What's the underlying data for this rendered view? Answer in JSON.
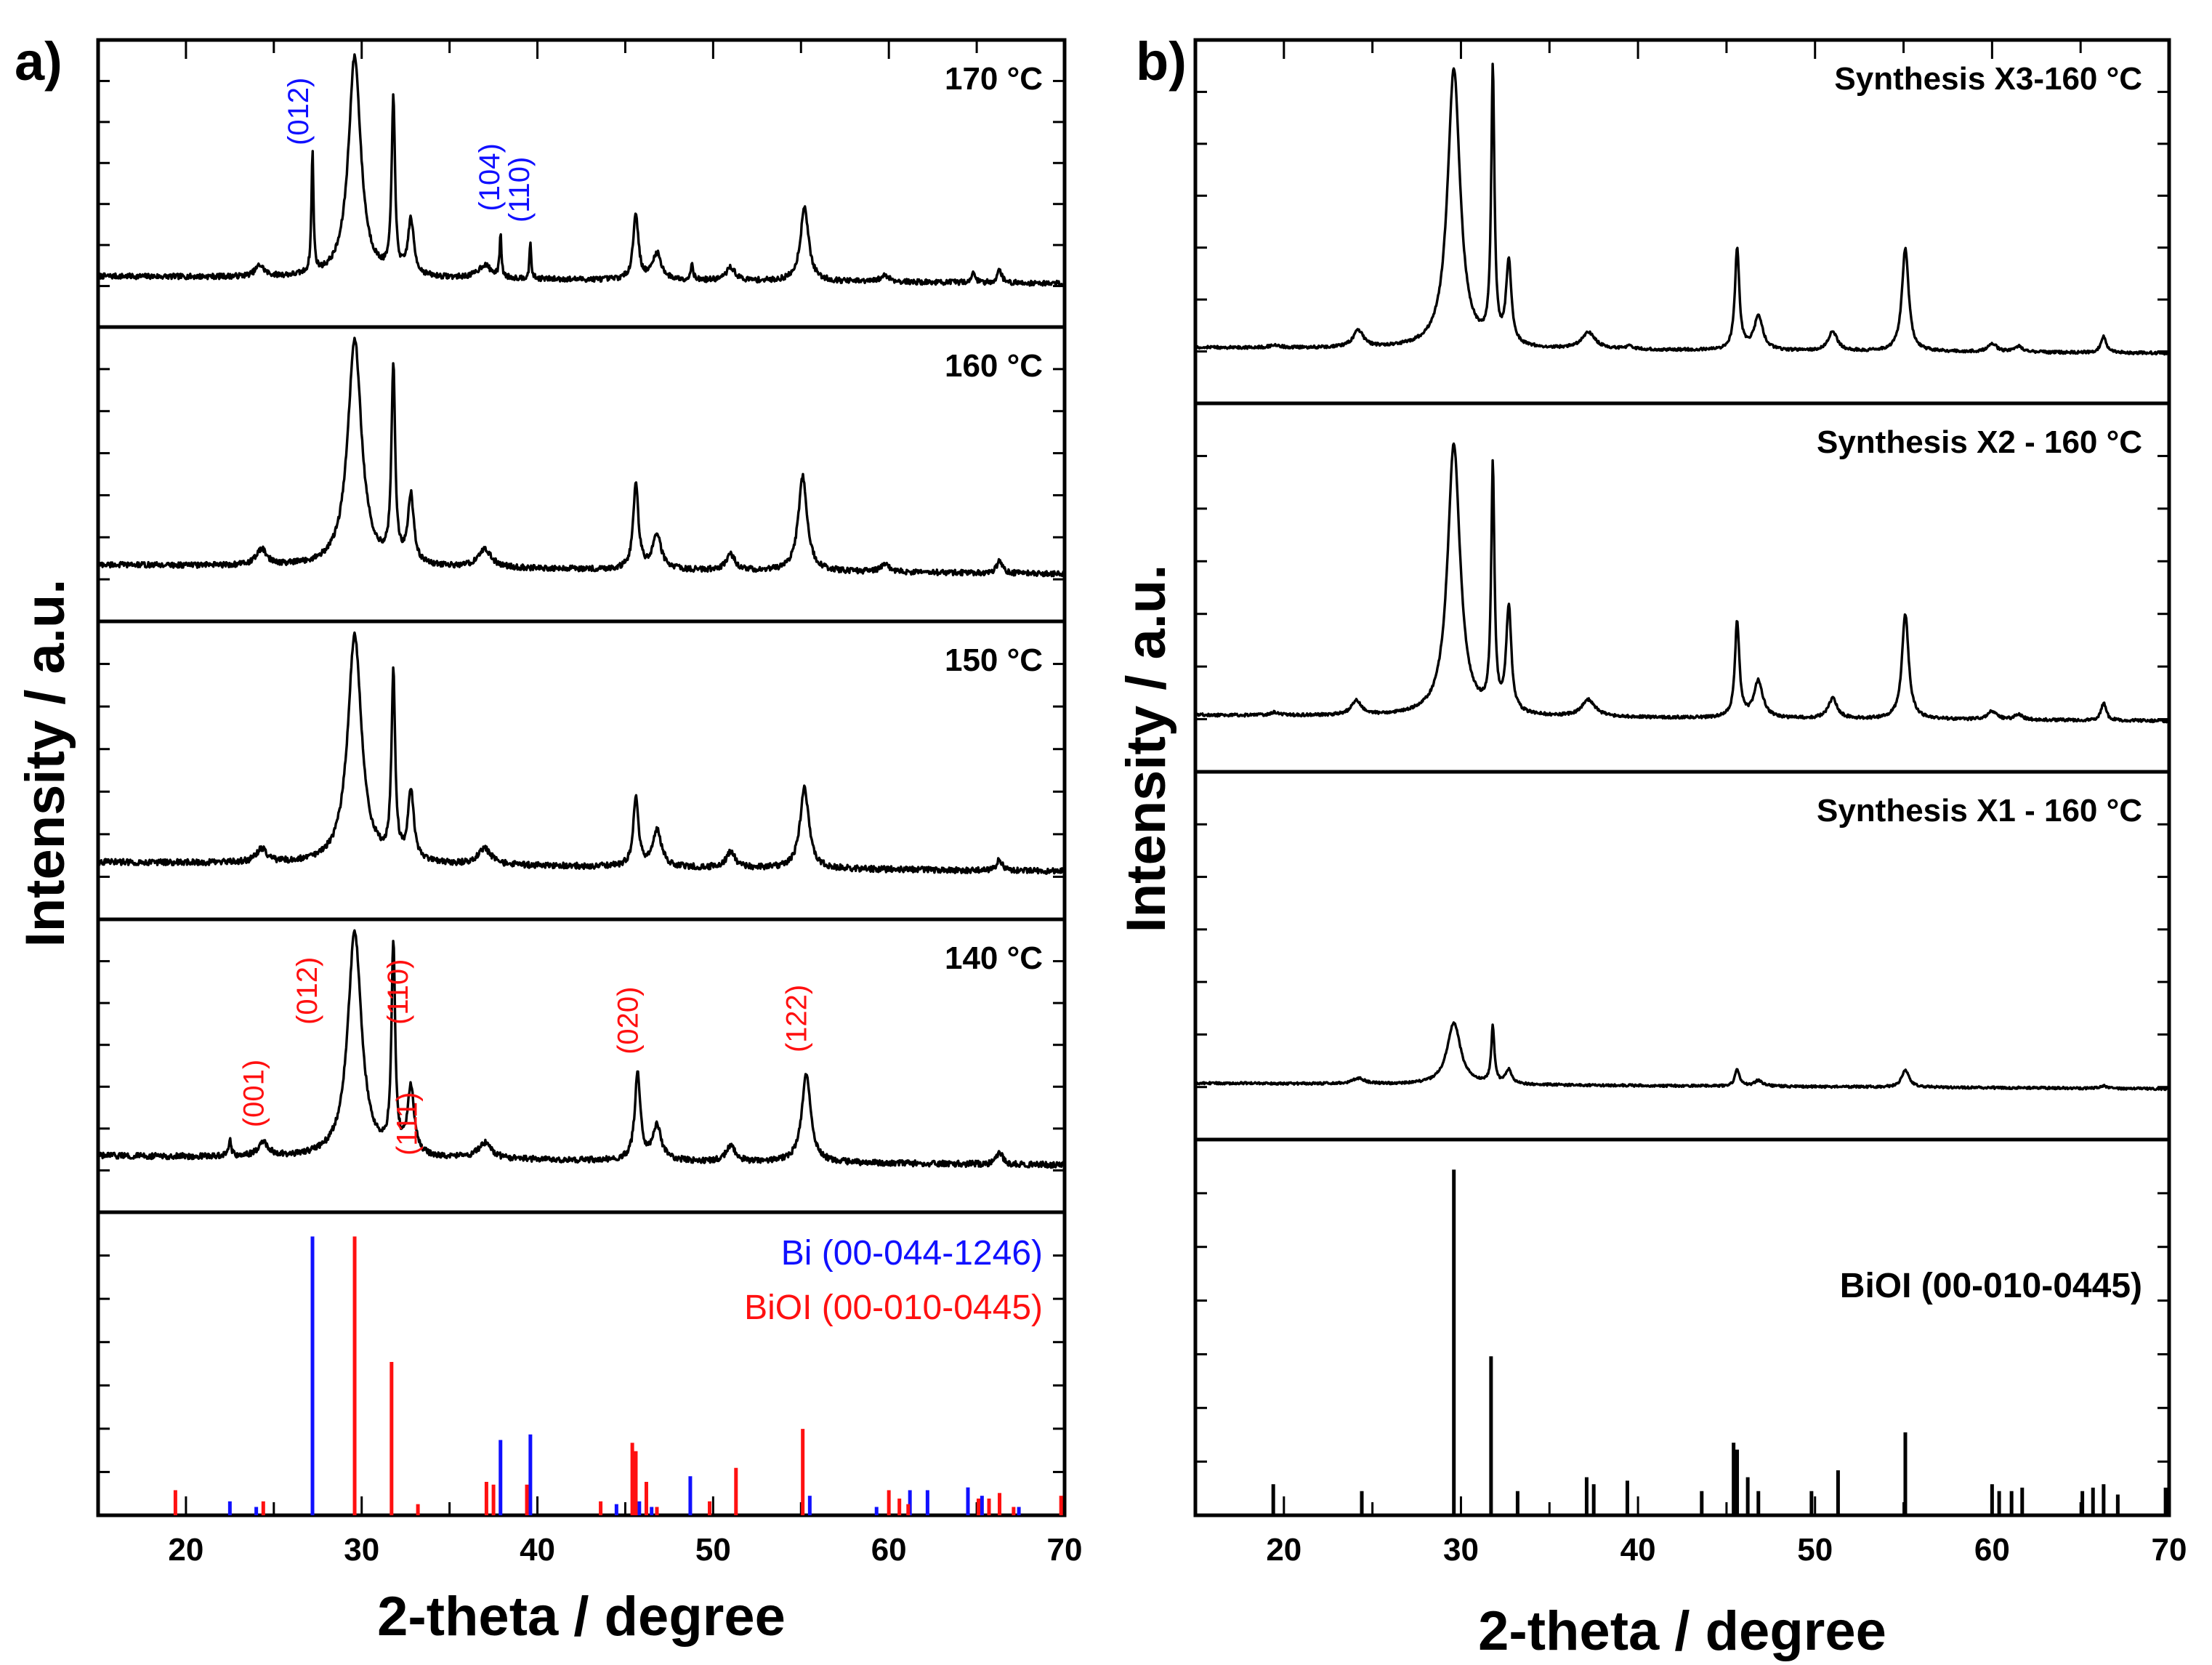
{
  "figure": {
    "panel_a_label": "a)",
    "panel_b_label": "b)",
    "colors": {
      "bi": "#1010ff",
      "bioi": "#ff1010",
      "black": "#000000"
    }
  },
  "chart_data": [
    {
      "type": "line",
      "panel": "a)",
      "xlabel": "2-theta / degree",
      "ylabel": "Intensity / a.u.",
      "xlim": [
        15,
        70
      ],
      "xticks": [
        20,
        30,
        40,
        50,
        60,
        70
      ],
      "grid": false,
      "stack": [
        {
          "label": "170 °C",
          "baseline": 0.08,
          "noise": 0.012,
          "peaks": [
            [
              24.2,
              0.05,
              0.6
            ],
            [
              27.2,
              0.55,
              0.14
            ],
            [
              29.6,
              1.0,
              0.85
            ],
            [
              31.8,
              0.8,
              0.22
            ],
            [
              32.8,
              0.25,
              0.4
            ],
            [
              37.0,
              0.06,
              0.9
            ],
            [
              37.9,
              0.2,
              0.12
            ],
            [
              39.6,
              0.16,
              0.12
            ],
            [
              45.6,
              0.3,
              0.35
            ],
            [
              46.8,
              0.12,
              0.6
            ],
            [
              48.8,
              0.08,
              0.15
            ],
            [
              51.0,
              0.06,
              0.6
            ],
            [
              55.2,
              0.34,
              0.55
            ],
            [
              59.8,
              0.03,
              0.6
            ],
            [
              64.8,
              0.04,
              0.3
            ],
            [
              66.3,
              0.06,
              0.3
            ]
          ],
          "annotations": [
            {
              "text": "(012)",
              "x": 27.2,
              "color": "#1010ff"
            },
            {
              "text": "(104)",
              "x": 37.9,
              "color": "#1010ff"
            },
            {
              "text": "(110)",
              "x": 39.6,
              "color": "#1010ff"
            }
          ]
        },
        {
          "label": "160 °C",
          "baseline": 0.1,
          "noise": 0.012,
          "peaks": [
            [
              24.3,
              0.07,
              0.7
            ],
            [
              29.6,
              1.0,
              0.95
            ],
            [
              31.8,
              0.85,
              0.25
            ],
            [
              32.8,
              0.3,
              0.4
            ],
            [
              37.0,
              0.08,
              0.9
            ],
            [
              45.6,
              0.38,
              0.35
            ],
            [
              46.8,
              0.15,
              0.6
            ],
            [
              51.0,
              0.07,
              0.6
            ],
            [
              55.1,
              0.42,
              0.6
            ],
            [
              59.8,
              0.03,
              0.6
            ],
            [
              66.3,
              0.06,
              0.35
            ]
          ],
          "annotations": []
        },
        {
          "label": "150 °C",
          "baseline": 0.1,
          "noise": 0.013,
          "peaks": [
            [
              24.3,
              0.06,
              0.7
            ],
            [
              29.6,
              1.0,
              0.95
            ],
            [
              31.8,
              0.8,
              0.25
            ],
            [
              32.8,
              0.3,
              0.4
            ],
            [
              37.0,
              0.07,
              0.9
            ],
            [
              45.6,
              0.3,
              0.35
            ],
            [
              46.8,
              0.16,
              0.6
            ],
            [
              51.0,
              0.07,
              0.6
            ],
            [
              55.2,
              0.35,
              0.6
            ],
            [
              66.3,
              0.05,
              0.35
            ]
          ],
          "annotations": []
        },
        {
          "label": "140 °C",
          "baseline": 0.1,
          "noise": 0.013,
          "peaks": [
            [
              22.5,
              0.08,
              0.15
            ],
            [
              24.4,
              0.06,
              0.7
            ],
            [
              29.6,
              1.0,
              0.95
            ],
            [
              31.8,
              0.92,
              0.25
            ],
            [
              32.8,
              0.3,
              0.45
            ],
            [
              37.0,
              0.07,
              0.9
            ],
            [
              45.7,
              0.38,
              0.38
            ],
            [
              46.8,
              0.15,
              0.6
            ],
            [
              51.0,
              0.07,
              0.6
            ],
            [
              55.3,
              0.4,
              0.6
            ],
            [
              66.3,
              0.06,
              0.35
            ]
          ],
          "annotations": [
            {
              "text": "(001)",
              "x": 24.4,
              "color": "#ff1010"
            },
            {
              "text": "(012)",
              "x": 29.6,
              "color": "#ff1010"
            },
            {
              "text": "(111)",
              "x": 32.8,
              "color": "#ff1010"
            },
            {
              "text": "(110)",
              "x": 33.6,
              "color": "#ff1010"
            },
            {
              "text": "(020)",
              "x": 45.7,
              "color": "#ff1010"
            },
            {
              "text": "(122)",
              "x": 55.3,
              "color": "#ff1010"
            }
          ]
        }
      ],
      "reference": {
        "legend": [
          {
            "text": "Bi (00-044-1246)",
            "color": "#1010ff"
          },
          {
            "text": "BiOI (00-010-0445)",
            "color": "#ff1010"
          }
        ],
        "bi_sticks": [
          [
            22.5,
            0.05
          ],
          [
            24.0,
            0.03
          ],
          [
            27.2,
            1.0
          ],
          [
            37.9,
            0.27
          ],
          [
            39.6,
            0.29
          ],
          [
            44.5,
            0.04
          ],
          [
            45.8,
            0.05
          ],
          [
            46.5,
            0.03
          ],
          [
            48.7,
            0.14
          ],
          [
            55.5,
            0.07
          ],
          [
            59.3,
            0.03
          ],
          [
            61.2,
            0.09
          ],
          [
            62.2,
            0.09
          ],
          [
            64.5,
            0.1
          ],
          [
            65.3,
            0.07
          ],
          [
            67.4,
            0.03
          ]
        ],
        "bioi_sticks": [
          [
            19.4,
            0.09
          ],
          [
            24.4,
            0.05
          ],
          [
            29.6,
            1.0
          ],
          [
            31.7,
            0.55
          ],
          [
            33.2,
            0.04
          ],
          [
            37.1,
            0.12
          ],
          [
            37.5,
            0.11
          ],
          [
            39.4,
            0.11
          ],
          [
            43.6,
            0.05
          ],
          [
            45.4,
            0.26
          ],
          [
            45.6,
            0.23
          ],
          [
            46.2,
            0.12
          ],
          [
            46.8,
            0.03
          ],
          [
            49.8,
            0.05
          ],
          [
            51.3,
            0.17
          ],
          [
            55.1,
            0.31
          ],
          [
            60.0,
            0.09
          ],
          [
            60.6,
            0.06
          ],
          [
            61.1,
            0.04
          ],
          [
            65.1,
            0.06
          ],
          [
            65.7,
            0.06
          ],
          [
            66.3,
            0.08
          ],
          [
            67.1,
            0.03
          ],
          [
            69.8,
            0.07
          ]
        ]
      }
    },
    {
      "type": "line",
      "panel": "b)",
      "xlabel": "2-theta / degree",
      "ylabel": "Intensity / a.u.",
      "xlim": [
        15,
        70
      ],
      "xticks": [
        20,
        30,
        40,
        50,
        60,
        70
      ],
      "grid": false,
      "stack": [
        {
          "label": "Synthesis X3-160 °C",
          "baseline": 0.05,
          "noise": 0.005,
          "peaks": [
            [
              19.5,
              0.01,
              0.6
            ],
            [
              24.2,
              0.06,
              0.7
            ],
            [
              29.6,
              1.0,
              0.85
            ],
            [
              31.8,
              0.98,
              0.22
            ],
            [
              32.7,
              0.3,
              0.35
            ],
            [
              37.2,
              0.06,
              0.9
            ],
            [
              39.5,
              0.01,
              0.5
            ],
            [
              45.6,
              0.36,
              0.3
            ],
            [
              46.8,
              0.12,
              0.6
            ],
            [
              51.0,
              0.07,
              0.6
            ],
            [
              55.1,
              0.37,
              0.45
            ],
            [
              60.0,
              0.03,
              0.6
            ],
            [
              61.5,
              0.02,
              0.5
            ],
            [
              66.3,
              0.06,
              0.35
            ]
          ],
          "annotations": []
        },
        {
          "label": "Synthesis X2 - 160 °C",
          "baseline": 0.05,
          "noise": 0.005,
          "peaks": [
            [
              19.5,
              0.01,
              0.6
            ],
            [
              24.1,
              0.05,
              0.7
            ],
            [
              29.6,
              0.96,
              0.85
            ],
            [
              31.8,
              0.86,
              0.22
            ],
            [
              32.7,
              0.37,
              0.35
            ],
            [
              37.2,
              0.06,
              0.9
            ],
            [
              45.6,
              0.34,
              0.3
            ],
            [
              46.8,
              0.13,
              0.6
            ],
            [
              51.0,
              0.07,
              0.6
            ],
            [
              55.1,
              0.37,
              0.45
            ],
            [
              60.0,
              0.03,
              0.6
            ],
            [
              61.5,
              0.02,
              0.5
            ],
            [
              66.3,
              0.06,
              0.35
            ]
          ],
          "annotations": []
        },
        {
          "label": "Synthesis X1 - 160 °C",
          "baseline": 0.05,
          "noise": 0.004,
          "peaks": [
            [
              24.2,
              0.02,
              0.8
            ],
            [
              29.6,
              0.22,
              0.9
            ],
            [
              31.8,
              0.2,
              0.22
            ],
            [
              32.7,
              0.05,
              0.4
            ],
            [
              45.6,
              0.06,
              0.3
            ],
            [
              46.8,
              0.02,
              0.6
            ],
            [
              55.1,
              0.06,
              0.5
            ],
            [
              66.3,
              0.01,
              0.4
            ]
          ],
          "annotations": []
        }
      ],
      "reference": {
        "legend": [
          {
            "text": "BiOI (00-010-0445)",
            "color": "#000000"
          }
        ],
        "bioi_sticks": [
          [
            19.4,
            0.09
          ],
          [
            24.4,
            0.07
          ],
          [
            29.6,
            1.0
          ],
          [
            31.7,
            0.46
          ],
          [
            33.2,
            0.07
          ],
          [
            37.1,
            0.11
          ],
          [
            37.5,
            0.09
          ],
          [
            39.4,
            0.1
          ],
          [
            43.6,
            0.07
          ],
          [
            45.4,
            0.21
          ],
          [
            45.6,
            0.19
          ],
          [
            46.2,
            0.11
          ],
          [
            46.8,
            0.07
          ],
          [
            49.8,
            0.07
          ],
          [
            51.3,
            0.13
          ],
          [
            55.1,
            0.24
          ],
          [
            60.0,
            0.09
          ],
          [
            60.4,
            0.07
          ],
          [
            61.1,
            0.07
          ],
          [
            61.7,
            0.08
          ],
          [
            65.1,
            0.07
          ],
          [
            65.7,
            0.08
          ],
          [
            66.3,
            0.09
          ],
          [
            67.1,
            0.06
          ],
          [
            69.8,
            0.08
          ]
        ]
      }
    }
  ]
}
